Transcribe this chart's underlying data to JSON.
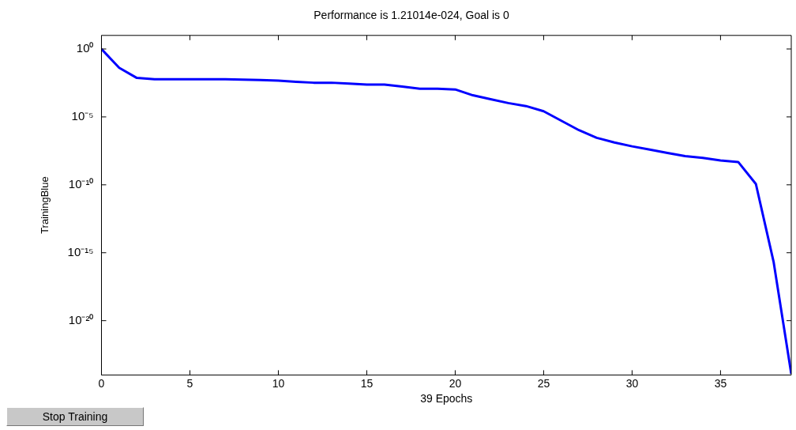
{
  "chart_data": {
    "type": "line",
    "title": "Performance is 1.21014e-024, Goal is 0",
    "xlabel": "39 Epochs",
    "ylabel": "TrainingBlue",
    "x": [
      0,
      1,
      2,
      3,
      4,
      5,
      6,
      7,
      8,
      9,
      10,
      11,
      12,
      13,
      14,
      15,
      16,
      17,
      18,
      19,
      20,
      21,
      22,
      23,
      24,
      25,
      26,
      27,
      28,
      29,
      30,
      31,
      32,
      33,
      34,
      35,
      36,
      37,
      38,
      39
    ],
    "series": [
      {
        "color": "#0000ff",
        "values": [
          1,
          0.041,
          0.0074,
          0.006,
          0.006,
          0.006,
          0.006,
          0.006,
          0.0055,
          0.0052,
          0.0047,
          0.0039,
          0.0033,
          0.0033,
          0.0028,
          0.0024,
          0.0024,
          0.0017,
          0.0012,
          0.0012,
          0.00105,
          0.00039,
          0.0002,
          0.000105,
          6.3e-05,
          2.6e-05,
          5.2e-06,
          1.05e-06,
          2.9e-07,
          1.3e-07,
          6.8e-08,
          3.9e-08,
          2.2e-08,
          1.3e-08,
          9.5e-09,
          6.3e-09,
          4.8e-09,
          1.15e-10,
          2.2e-16,
          1.21014e-24
        ]
      }
    ],
    "xlim": [
      0,
      39
    ],
    "xticks": [
      0,
      5,
      10,
      15,
      20,
      25,
      30,
      35
    ],
    "ylim": [
      1e-24,
      10
    ],
    "yticks": [
      {
        "value": 1,
        "label": "10⁰"
      },
      {
        "value": 1e-05,
        "label": "10⁻⁵"
      },
      {
        "value": 1e-10,
        "label": "10⁻¹⁰"
      },
      {
        "value": 1e-15,
        "label": "10⁻¹⁵"
      },
      {
        "value": 1e-20,
        "label": "10⁻²⁰"
      }
    ],
    "log": "y",
    "grid": false,
    "legend": false,
    "marker": "none",
    "line_style": "solid",
    "annotations": [
      "Stop Training"
    ]
  }
}
